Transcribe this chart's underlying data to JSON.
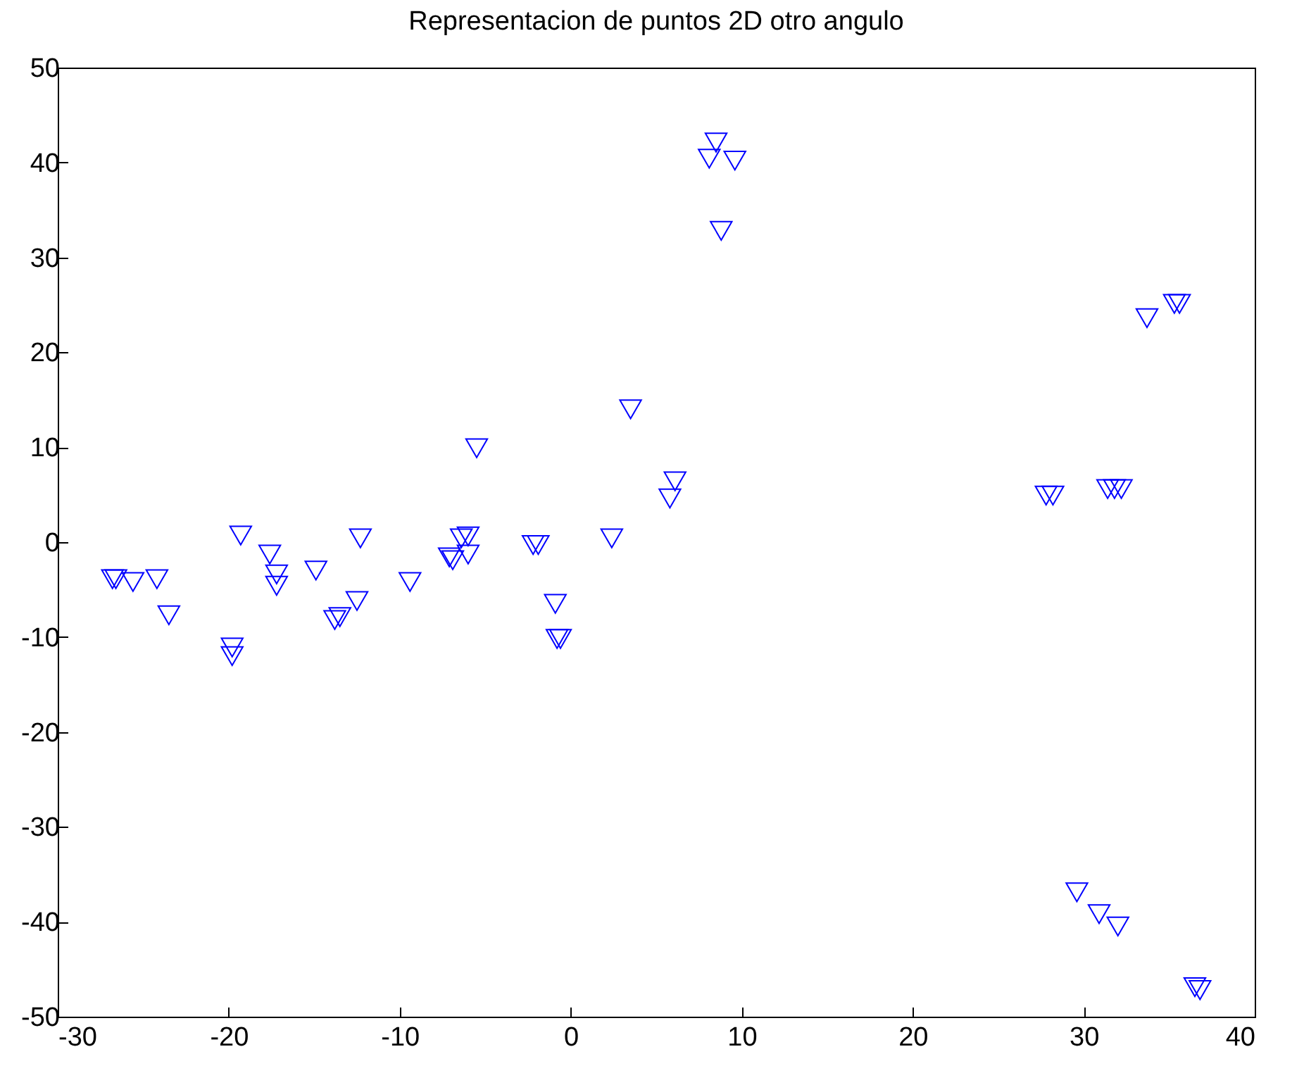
{
  "chart_data": {
    "type": "scatter",
    "title": "Representacion de puntos 2D otro angulo",
    "marker": "triangle",
    "grid": false,
    "xlim": [
      -30,
      40
    ],
    "xticks": [
      -30,
      -20,
      -10,
      0,
      10,
      20,
      30,
      40
    ],
    "ylim": [
      -50,
      50
    ],
    "yticks": [
      -50,
      -40,
      -30,
      -20,
      -10,
      0,
      10,
      20,
      30,
      40,
      50
    ],
    "series": [
      {
        "color": "#0000ff",
        "x": [
          -26.8,
          -26.6,
          -25.6,
          -24.2,
          -23.5,
          -19.8,
          -19.8,
          -19.3,
          -17.6,
          -17.2,
          -17.2,
          -14.9,
          -13.8,
          -13.5,
          -12.5,
          -12.3,
          -9.4,
          -7.1,
          -6.9,
          -6.4,
          -6.0,
          -6.0,
          -5.5,
          -2.2,
          -1.9,
          -0.9,
          -0.8,
          -0.6,
          2.4,
          3.5,
          6.1,
          5.8,
          8.5,
          8.1,
          9.6,
          8.8,
          27.8,
          28.2,
          31.4,
          31.8,
          32.2,
          33.7,
          35.3,
          35.6,
          29.6,
          30.9,
          32.0,
          36.5,
          36.8
        ],
        "values": [
          -3.9,
          -3.9,
          -4.2,
          -3.9,
          -7.7,
          -11.1,
          -12.0,
          0.7,
          -1.3,
          -3.4,
          -4.6,
          -3.0,
          -8.2,
          -7.9,
          -6.2,
          0.4,
          -4.2,
          -1.6,
          -1.9,
          0.4,
          0.6,
          -1.3,
          9.9,
          -0.3,
          -0.3,
          -6.5,
          -10.2,
          -10.2,
          0.4,
          14.0,
          6.4,
          4.6,
          42.1,
          40.4,
          40.2,
          32.8,
          4.9,
          4.9,
          5.6,
          5.6,
          5.6,
          23.6,
          25.1,
          25.1,
          -36.9,
          -39.2,
          -40.5,
          -46.9,
          -47.2
        ]
      }
    ]
  }
}
